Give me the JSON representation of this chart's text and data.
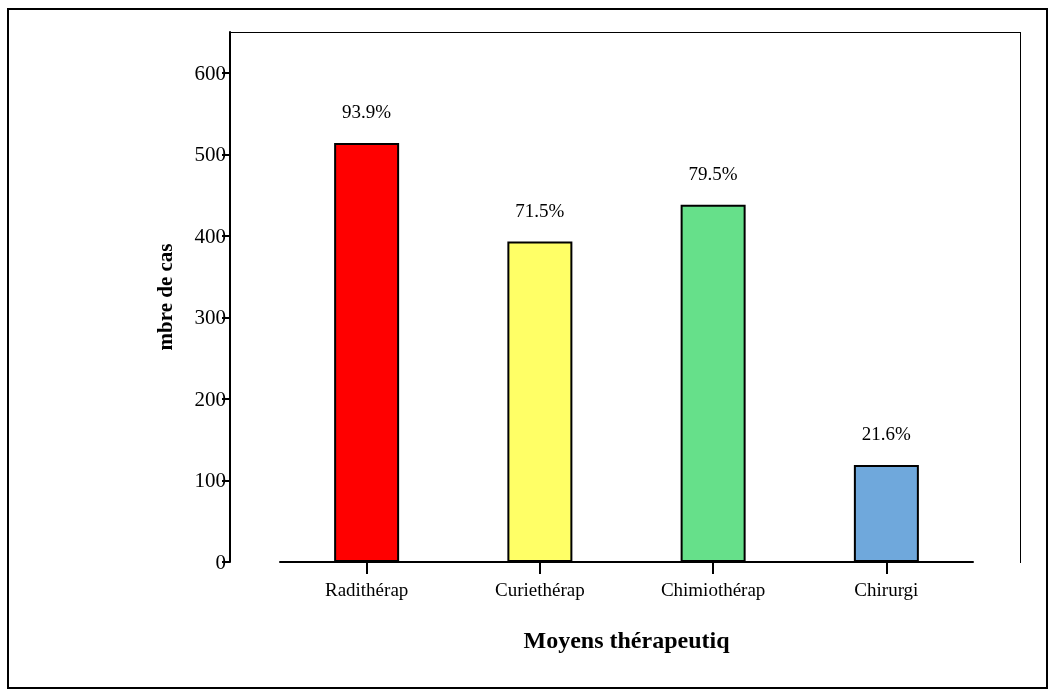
{
  "chart_data": {
    "type": "bar",
    "categories": [
      "Radithérap",
      "Curiethérap",
      "Chimiothérap",
      "Chirurgi"
    ],
    "values": [
      514,
      393,
      438,
      119
    ],
    "colors": [
      "#ff0000",
      "#ffff66",
      "#66e08a",
      "#6fa8dc"
    ],
    "annotations": [
      {
        "text": "93.9%",
        "x": "Radithérap",
        "y": 514
      },
      {
        "text": "71.5%",
        "x": "Curiethérap",
        "y": 393
      },
      {
        "text": "79.5%",
        "x": "Chimiothérap",
        "y": 438
      },
      {
        "text": "21.6%",
        "x": "Chirurgi",
        "y": 119
      }
    ],
    "xlabel": "Moyens thérapeutiq",
    "ylabel": "mbre de cas",
    "ylim": [
      0,
      650
    ],
    "yticks": [
      0,
      100,
      200,
      300,
      400,
      500,
      600
    ]
  }
}
